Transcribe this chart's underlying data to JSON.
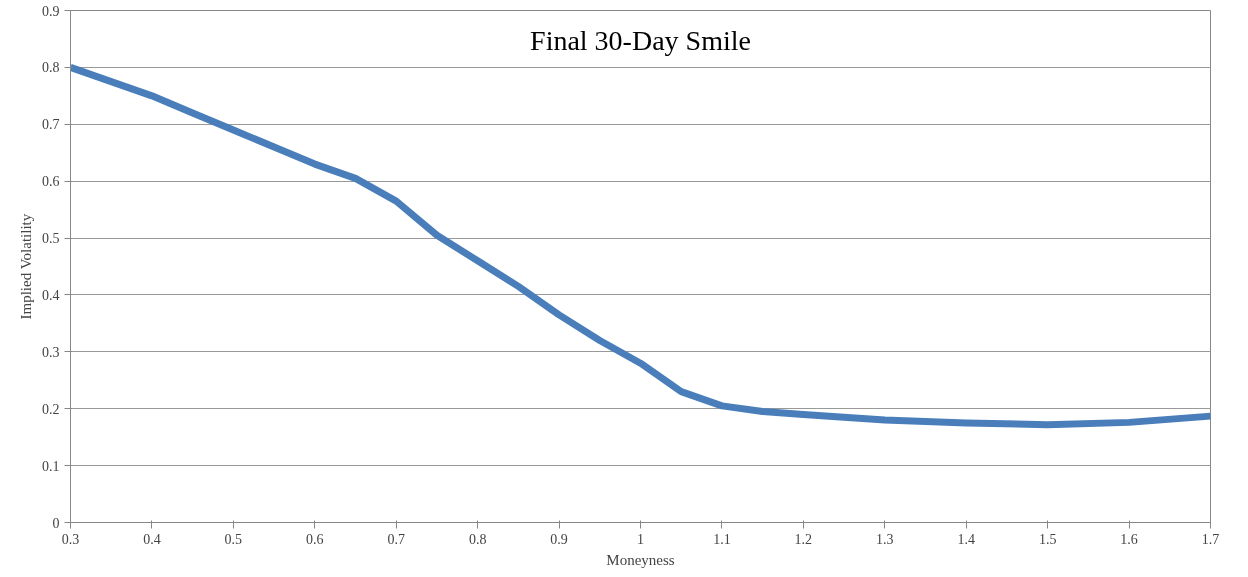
{
  "chart_data": {
    "type": "line",
    "title": "Final 30-Day Smile",
    "xlabel": "Moneyness",
    "ylabel": "Implied Volatility",
    "x": [
      0.3,
      0.35,
      0.4,
      0.45,
      0.5,
      0.55,
      0.6,
      0.65,
      0.7,
      0.75,
      0.8,
      0.85,
      0.9,
      0.95,
      1.0,
      1.05,
      1.1,
      1.15,
      1.2,
      1.3,
      1.4,
      1.5,
      1.6,
      1.7
    ],
    "series": [
      {
        "color": "#4a7ebb",
        "values": [
          0.8,
          0.775,
          0.75,
          0.72,
          0.69,
          0.66,
          0.63,
          0.605,
          0.565,
          0.505,
          0.46,
          0.415,
          0.365,
          0.32,
          0.28,
          0.23,
          0.205,
          0.195,
          0.19,
          0.18,
          0.175,
          0.172,
          0.176,
          0.187
        ]
      }
    ],
    "xlim": [
      0.3,
      1.7
    ],
    "xticks": [
      0.3,
      0.4,
      0.5,
      0.6,
      0.7,
      0.8,
      0.9,
      1,
      1.1,
      1.2,
      1.3,
      1.4,
      1.5,
      1.6,
      1.7
    ],
    "ylim": [
      0,
      0.9
    ],
    "yticks": [
      0,
      0.1,
      0.2,
      0.3,
      0.4,
      0.5,
      0.6,
      0.7,
      0.8,
      0.9
    ],
    "grid": "y",
    "marker": "none",
    "line_style": "solid"
  }
}
